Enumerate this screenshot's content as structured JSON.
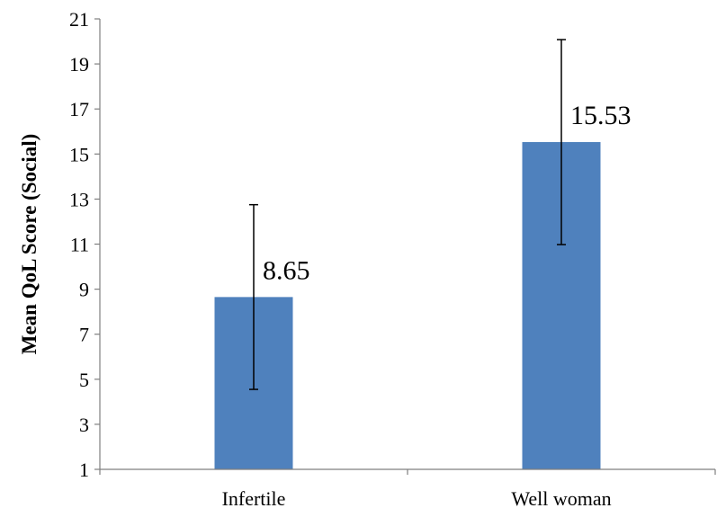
{
  "chart_data": {
    "type": "bar",
    "categories": [
      "Infertile",
      "Well woman"
    ],
    "values": [
      8.65,
      15.53
    ],
    "data_labels": [
      "8.65",
      "15.53"
    ],
    "error_bars": [
      {
        "lower": 4.55,
        "upper": 12.75
      },
      {
        "lower": 10.98,
        "upper": 20.08
      }
    ],
    "title": "",
    "xlabel": "",
    "ylabel": "Mean QoL Score (Social)",
    "ylim": [
      1,
      21
    ],
    "yticks": [
      1,
      3,
      5,
      7,
      9,
      11,
      13,
      15,
      17,
      19,
      21
    ],
    "ytick_labels": [
      "1",
      "3",
      "5",
      "7",
      "9",
      "11",
      "13",
      "15",
      "17",
      "19",
      "21"
    ],
    "grid": false,
    "legend": "none",
    "bar_color": "#4F81BD",
    "axis_color": "#7F7F7F",
    "error_bar_color": "#000000"
  }
}
